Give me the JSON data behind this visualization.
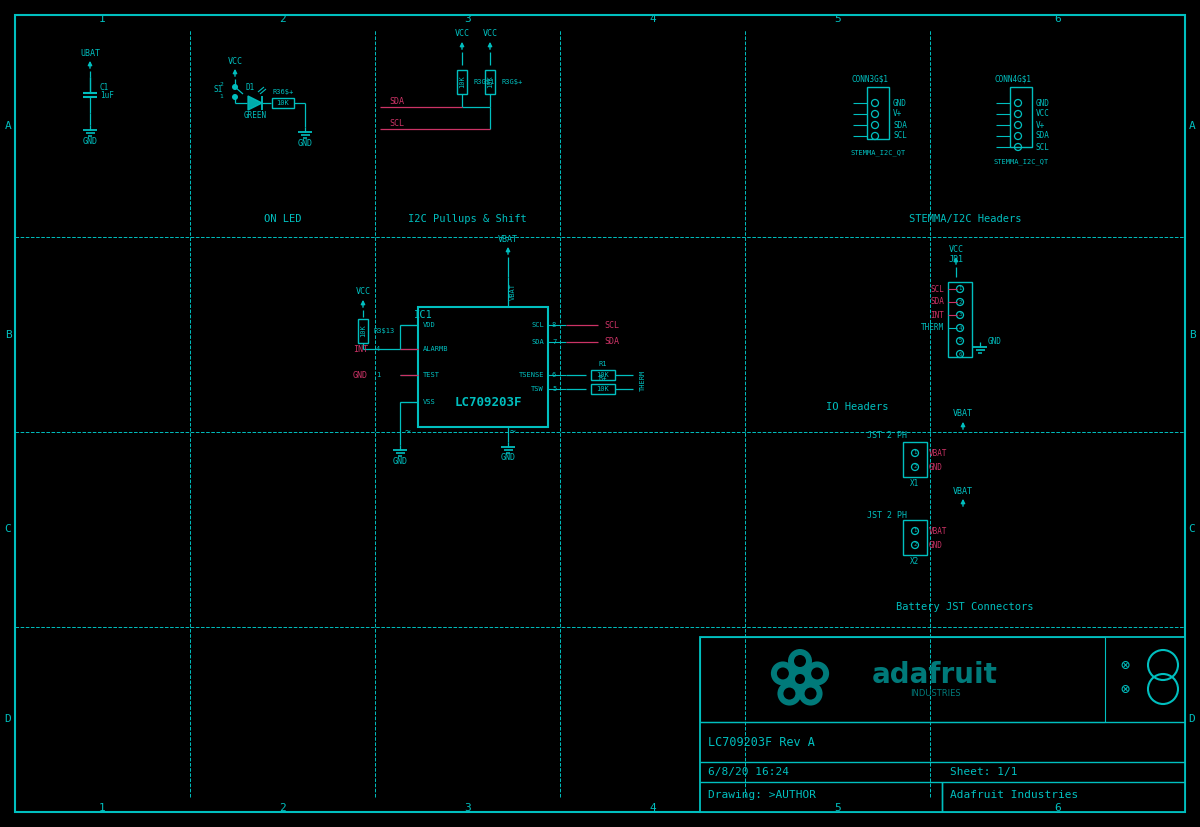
{
  "bg_color": "#000000",
  "border_color": "#00BFBF",
  "wire_cyan": "#00BFBF",
  "wire_pink": "#CC3366",
  "text_cyan": "#00BFBF",
  "logo_color": "#007A7A",
  "col_labels": [
    "1",
    "2",
    "3",
    "4",
    "5",
    "6"
  ],
  "row_labels": [
    "A",
    "B",
    "C",
    "D"
  ],
  "title_block": {
    "project": "LC709203F Rev A",
    "date": "6/8/20 16:24",
    "sheet": "Sheet: 1/1",
    "drawing": "Drawing: >AUTHOR",
    "company": "Adafruit Industries"
  },
  "section_labels": {
    "on_led": "ON LED",
    "i2c": "I2C Pullups & Shift",
    "stemma": "STEMMA/I2C Headers",
    "io": "IO Headers",
    "battery": "Battery JST Connectors"
  }
}
